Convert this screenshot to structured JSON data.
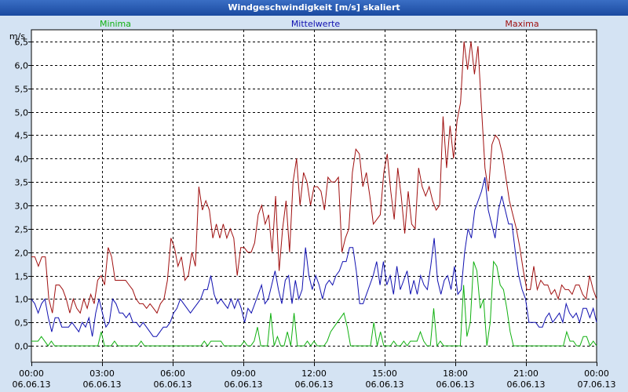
{
  "window": {
    "title": "Windgeschwindigkeit [m/s] skaliert"
  },
  "chart_data": {
    "type": "line",
    "title": "Windgeschwindigkeit [m/s] skaliert",
    "ylabel": "m/s",
    "xlabel": "",
    "ylim": [
      -0.35,
      6.75
    ],
    "xlim": [
      0,
      24
    ],
    "y_ticks": [
      "0,0",
      "0,5",
      "1,0",
      "1,5",
      "2,0",
      "2,5",
      "3,0",
      "3,5",
      "4,0",
      "4,5",
      "5,0",
      "5,5",
      "6,0",
      "6,5"
    ],
    "x_ticks": [
      {
        "time": "00:00",
        "date": "06.06.13"
      },
      {
        "time": "03:00",
        "date": "06.06.13"
      },
      {
        "time": "06:00",
        "date": "06.06.13"
      },
      {
        "time": "09:00",
        "date": "06.06.13"
      },
      {
        "time": "12:00",
        "date": "06.06.13"
      },
      {
        "time": "15:00",
        "date": "06.06.13"
      },
      {
        "time": "18:00",
        "date": "06.06.13"
      },
      {
        "time": "21:00",
        "date": "06.06.13"
      },
      {
        "time": "00:00",
        "date": "07.06.13"
      }
    ],
    "grid": true,
    "series": [
      {
        "name": "Minima",
        "color": "#10b010",
        "values": [
          0.1,
          0.1,
          0.1,
          0.2,
          0.1,
          0.0,
          0.1,
          0.0,
          0.0,
          0.0,
          0.0,
          0.0,
          0.0,
          0.0,
          0.0,
          0.0,
          0.0,
          0.0,
          0.0,
          0.0,
          0.0,
          0.3,
          0.0,
          0.0,
          0.0,
          0.1,
          0.0,
          0.0,
          0.0,
          0.0,
          0.0,
          0.0,
          0.0,
          0.1,
          0.0,
          0.0,
          0.0,
          0.0,
          0.0,
          0.0,
          0.0,
          0.0,
          0.0,
          0.0,
          0.0,
          0.0,
          0.0,
          0.0,
          0.0,
          0.0,
          0.0,
          0.0,
          0.1,
          0.0,
          0.1,
          0.1,
          0.1,
          0.1,
          0.0,
          0.0,
          0.0,
          0.0,
          0.0,
          0.0,
          0.1,
          0.0,
          0.0,
          0.1,
          0.4,
          0.0,
          0.0,
          0.0,
          0.7,
          0.0,
          0.2,
          0.0,
          0.0,
          0.3,
          0.0,
          0.7,
          0.0,
          0.0,
          0.0,
          0.1,
          0.0,
          0.1,
          0.0,
          0.0,
          0.0,
          0.1,
          0.3,
          0.4,
          0.5,
          0.6,
          0.7,
          0.4,
          0.0,
          0.0,
          0.0,
          0.0,
          0.0,
          0.0,
          0.0,
          0.5,
          0.0,
          0.3,
          0.0,
          0.0,
          0.0,
          0.1,
          0.0,
          0.0,
          0.1,
          0.0,
          0.1,
          0.1,
          0.1,
          0.3,
          0.1,
          0.0,
          0.0,
          0.8,
          0.0,
          0.1,
          0.0,
          0.0,
          0.0,
          0.0,
          0.0,
          0.0,
          1.3,
          0.2,
          0.5,
          1.8,
          1.6,
          0.8,
          1.0,
          0.0,
          0.5,
          1.8,
          1.7,
          1.3,
          1.2,
          0.8,
          0.3,
          0.0,
          0.0,
          0.0,
          0.0,
          0.0,
          0.0,
          0.0,
          0.0,
          0.0,
          0.0,
          0.0,
          0.0,
          0.0,
          0.0,
          0.0,
          0.0,
          0.3,
          0.1,
          0.1,
          0.0,
          0.0,
          0.2,
          0.2,
          0.0,
          0.1,
          0.0
        ]
      },
      {
        "name": "Mittelwerte",
        "color": "#1010b0",
        "values": [
          1.0,
          0.9,
          0.7,
          0.9,
          1.0,
          0.6,
          0.3,
          0.6,
          0.6,
          0.4,
          0.4,
          0.4,
          0.5,
          0.4,
          0.3,
          0.5,
          0.4,
          0.6,
          0.2,
          0.7,
          1.0,
          0.7,
          0.4,
          0.5,
          1.0,
          0.9,
          0.7,
          0.7,
          0.6,
          0.7,
          0.5,
          0.5,
          0.4,
          0.5,
          0.4,
          0.3,
          0.2,
          0.2,
          0.3,
          0.4,
          0.4,
          0.5,
          0.7,
          0.8,
          1.0,
          0.9,
          0.8,
          0.7,
          0.8,
          0.9,
          1.0,
          1.2,
          1.2,
          1.5,
          1.1,
          0.9,
          1.0,
          0.9,
          0.8,
          1.0,
          0.8,
          1.0,
          0.8,
          0.5,
          0.8,
          0.7,
          0.9,
          1.1,
          1.3,
          0.9,
          1.0,
          1.3,
          1.6,
          1.2,
          0.9,
          1.4,
          1.5,
          0.9,
          1.4,
          1.0,
          1.2,
          2.1,
          1.5,
          1.2,
          1.5,
          1.3,
          1.0,
          1.3,
          1.4,
          1.3,
          1.5,
          1.6,
          1.8,
          1.8,
          2.1,
          2.1,
          1.6,
          0.9,
          0.9,
          1.1,
          1.3,
          1.5,
          1.8,
          1.3,
          1.8,
          1.3,
          1.5,
          1.1,
          1.7,
          1.2,
          1.4,
          1.6,
          1.1,
          1.4,
          1.1,
          1.5,
          1.3,
          1.2,
          1.7,
          2.3,
          1.4,
          1.1,
          1.4,
          1.5,
          1.2,
          1.7,
          1.1,
          1.2,
          2.0,
          2.5,
          2.3,
          2.9,
          3.1,
          3.3,
          3.6,
          2.9,
          2.6,
          2.3,
          2.9,
          3.2,
          2.9,
          2.6,
          2.6,
          2.0,
          1.5,
          1.2,
          1.0,
          0.5,
          0.5,
          0.5,
          0.4,
          0.4,
          0.6,
          0.7,
          0.5,
          0.6,
          0.7,
          0.5,
          0.9,
          0.7,
          0.6,
          0.7,
          0.5,
          0.8,
          0.8,
          0.6,
          0.8,
          0.5
        ]
      },
      {
        "name": "Maxima",
        "color": "#a01010",
        "values": [
          1.9,
          1.9,
          1.7,
          1.9,
          1.9,
          1.0,
          0.7,
          1.3,
          1.3,
          1.2,
          1.0,
          0.7,
          1.0,
          0.8,
          0.7,
          1.0,
          0.8,
          1.1,
          0.9,
          1.4,
          1.5,
          1.3,
          2.1,
          1.9,
          1.4,
          1.4,
          1.4,
          1.4,
          1.3,
          1.2,
          1.0,
          0.9,
          0.9,
          0.8,
          0.9,
          0.8,
          0.7,
          0.9,
          1.0,
          1.4,
          2.3,
          2.1,
          1.7,
          1.9,
          1.4,
          1.5,
          2.0,
          1.7,
          3.4,
          2.9,
          3.1,
          2.9,
          2.3,
          2.6,
          2.3,
          2.6,
          2.3,
          2.5,
          2.3,
          1.5,
          2.1,
          2.1,
          2.0,
          2.0,
          2.2,
          2.8,
          3.0,
          2.6,
          2.8,
          2.0,
          3.2,
          1.6,
          2.5,
          3.1,
          2.0,
          3.5,
          4.0,
          3.0,
          3.7,
          3.5,
          3.0,
          3.4,
          3.4,
          3.3,
          2.9,
          3.6,
          3.5,
          3.5,
          3.6,
          2.0,
          2.3,
          2.5,
          3.7,
          4.2,
          4.1,
          3.4,
          3.7,
          3.2,
          2.6,
          2.7,
          2.8,
          3.7,
          4.1,
          3.3,
          2.7,
          3.8,
          3.2,
          2.4,
          3.3,
          2.6,
          2.5,
          3.8,
          3.4,
          3.2,
          3.4,
          3.1,
          2.9,
          3.0,
          4.9,
          3.8,
          4.7,
          4.0,
          4.8,
          5.2,
          6.5,
          5.9,
          6.5,
          5.8,
          6.4,
          5.1,
          3.8,
          3.3,
          4.3,
          4.5,
          4.4,
          4.1,
          3.6,
          3.1,
          2.8,
          2.5,
          2.1,
          1.6,
          1.2,
          1.2,
          1.7,
          1.2,
          1.4,
          1.3,
          1.3,
          1.1,
          1.2,
          1.0,
          1.3,
          1.2,
          1.2,
          1.1,
          1.3,
          1.3,
          1.1,
          1.0,
          1.5,
          1.2,
          1.0
        ]
      }
    ]
  }
}
